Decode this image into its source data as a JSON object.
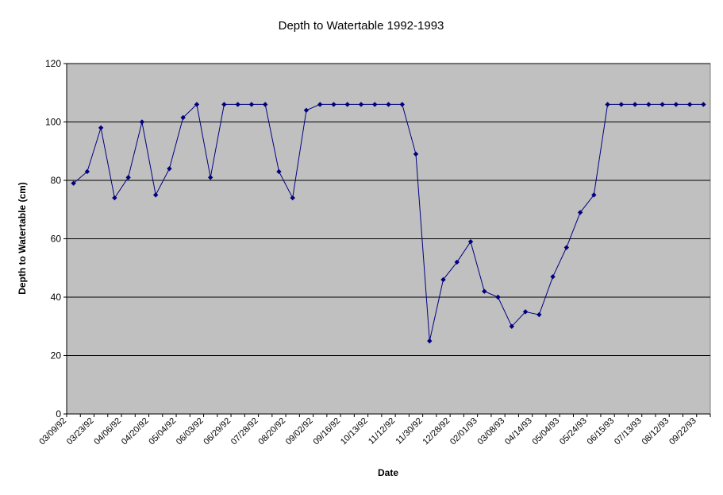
{
  "chart_data": {
    "type": "line",
    "title": "Depth to Watertable 1992-1993",
    "xlabel": "Date",
    "ylabel": "Depth to Watertable (cm)",
    "ylim": [
      0,
      120
    ],
    "yticks": [
      0,
      20,
      40,
      60,
      80,
      100,
      120
    ],
    "grid": "horizontal",
    "legend": "none",
    "colors": {
      "plot_bg": "#c0c0c0",
      "series": "#000080",
      "grid": "#000000"
    },
    "x_tick_labels": [
      "03/09/92",
      "03/23/92",
      "04/06/92",
      "04/20/92",
      "05/04/92",
      "06/03/92",
      "06/29/92",
      "07/28/92",
      "08/20/92",
      "09/02/92",
      "09/16/92",
      "10/13/92",
      "11/12/92",
      "11/30/92",
      "12/28/92",
      "02/01/93",
      "03/08/93",
      "04/14/93",
      "05/04/93",
      "05/24/93",
      "06/15/93",
      "07/13/93",
      "08/12/93",
      "09/22/93"
    ],
    "series": [
      {
        "values": [
          79,
          83,
          98,
          74,
          81,
          100,
          75,
          84,
          101.5,
          106,
          81,
          106,
          106,
          106,
          106,
          83,
          74,
          104,
          106,
          106,
          106,
          106,
          106,
          106,
          106,
          89,
          25,
          46,
          52,
          59,
          42,
          40,
          30,
          35,
          34,
          47,
          57,
          69,
          75,
          106,
          106,
          106,
          106,
          106,
          106,
          106,
          106
        ]
      }
    ]
  }
}
